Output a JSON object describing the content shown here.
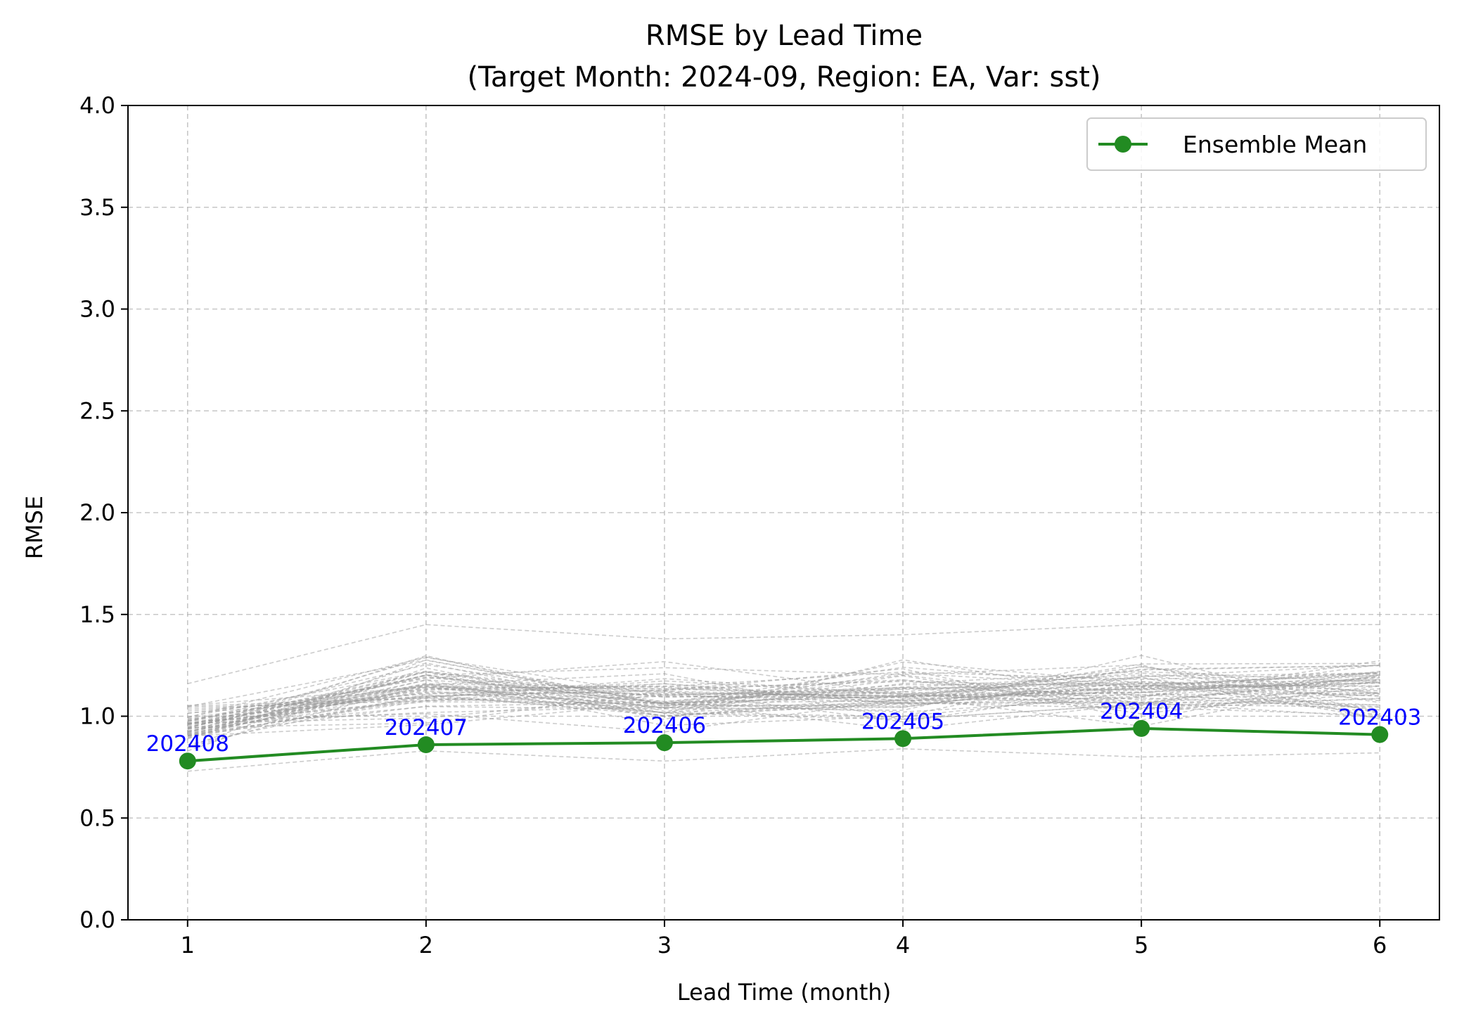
{
  "chart_data": {
    "type": "line",
    "title": "RMSE by Lead Time",
    "subtitle": "(Target Month: 2024-09, Region: EA, Var: sst)",
    "xlabel": "Lead Time (month)",
    "ylabel": "RMSE",
    "xlim": [
      0.75,
      6.25
    ],
    "ylim": [
      0,
      4
    ],
    "x": [
      1,
      2,
      3,
      4,
      5,
      6
    ],
    "x_tick_labels": [
      "1",
      "2",
      "3",
      "4",
      "5",
      "6"
    ],
    "y_ticks": [
      0.0,
      0.5,
      1.0,
      1.5,
      2.0,
      2.5,
      3.0,
      3.5,
      4.0
    ],
    "y_tick_labels": [
      "0.0",
      "0.5",
      "1.0",
      "1.5",
      "2.0",
      "2.5",
      "3.0",
      "3.5",
      "4.0"
    ],
    "grid": true,
    "legend_position": "top-right",
    "series": [
      {
        "name": "Ensemble Mean",
        "color": "#228B22",
        "marker": "circle",
        "values": [
          0.78,
          0.86,
          0.87,
          0.89,
          0.94,
          0.91
        ]
      }
    ],
    "point_annotations": [
      "202408",
      "202407",
      "202406",
      "202405",
      "202404",
      "202403"
    ],
    "annotation_color": "#0000FF",
    "member_band": {
      "color": "#999999",
      "style": "dashed",
      "min": [
        0.73,
        0.83,
        0.78,
        0.84,
        0.8,
        0.82
      ],
      "max": [
        1.16,
        1.45,
        1.38,
        1.4,
        1.45,
        1.45
      ]
    }
  }
}
